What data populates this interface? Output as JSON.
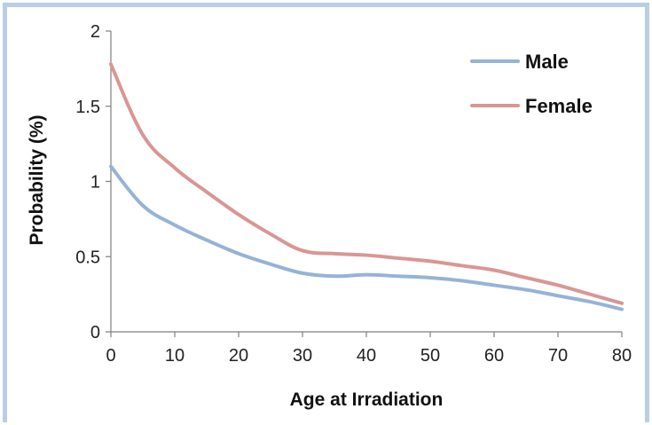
{
  "chart_data": {
    "type": "line",
    "title": "",
    "xlabel": "Age at Irradiation",
    "ylabel": "Probability (%)",
    "xlim": [
      0,
      80
    ],
    "ylim": [
      0,
      2
    ],
    "x_ticks": [
      "0",
      "10",
      "20",
      "30",
      "40",
      "50",
      "60",
      "70",
      "80"
    ],
    "y_ticks": [
      "0",
      "0.5",
      "1",
      "1.5",
      "2"
    ],
    "grid": false,
    "legend_position": "top-right",
    "x": [
      0,
      5,
      10,
      15,
      20,
      25,
      30,
      35,
      40,
      45,
      50,
      55,
      60,
      65,
      70,
      75,
      80
    ],
    "series": [
      {
        "name": "Male",
        "color": "#95b3d7",
        "values": [
          1.1,
          0.84,
          0.71,
          0.61,
          0.52,
          0.45,
          0.39,
          0.37,
          0.38,
          0.37,
          0.36,
          0.34,
          0.31,
          0.28,
          0.24,
          0.2,
          0.15
        ]
      },
      {
        "name": "Female",
        "color": "#d99694",
        "values": [
          1.78,
          1.31,
          1.09,
          0.93,
          0.78,
          0.65,
          0.54,
          0.52,
          0.51,
          0.49,
          0.47,
          0.44,
          0.41,
          0.36,
          0.31,
          0.25,
          0.19
        ]
      }
    ]
  }
}
